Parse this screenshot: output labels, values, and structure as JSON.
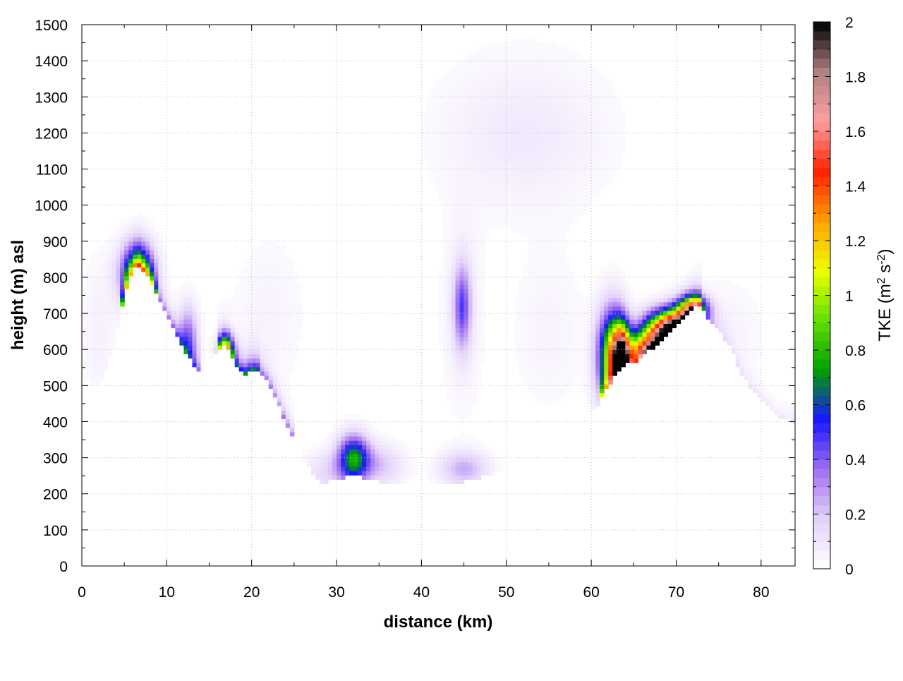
{
  "chart_data": {
    "type": "heatmap",
    "xlabel": "distance (km)",
    "ylabel": "height (m) asl",
    "colorbar_label": {
      "main": "TKE (m",
      "sup1": "2",
      "mid": " s",
      "sup2": "-2",
      "end": ")"
    },
    "xlim": [
      0,
      84
    ],
    "ylim": [
      0,
      1500
    ],
    "clim": [
      0,
      2
    ],
    "x_ticks": [
      0,
      10,
      20,
      30,
      40,
      50,
      60,
      70,
      80
    ],
    "y_ticks": [
      0,
      100,
      200,
      300,
      400,
      500,
      600,
      700,
      800,
      900,
      1000,
      1100,
      1200,
      1300,
      1400,
      1500
    ],
    "c_ticks": [
      0,
      0.2,
      0.4,
      0.6,
      0.8,
      1,
      1.2,
      1.4,
      1.6,
      1.8,
      2
    ],
    "grid": true,
    "colormap": [
      "#ffffff",
      "#e4d2fa",
      "#a070f0",
      "#1818ff",
      "#00a000",
      "#60e000",
      "#f0ff00",
      "#ffa000",
      "#ff2000",
      "#ffa0a0",
      "#b08080",
      "#000000"
    ],
    "terrain": {
      "x": [
        0,
        2,
        4,
        5,
        6.5,
        8,
        9,
        11,
        13,
        14,
        15,
        16,
        17,
        18,
        19,
        20,
        21,
        22,
        24,
        26,
        28,
        30,
        32,
        34,
        36,
        40,
        42,
        44,
        46,
        48,
        50,
        55,
        58,
        60,
        62,
        64,
        65,
        66,
        68,
        70,
        72,
        73,
        74,
        76,
        78,
        80,
        82,
        84
      ],
      "height": [
        520,
        500,
        620,
        760,
        840,
        800,
        740,
        650,
        560,
        530,
        560,
        600,
        620,
        560,
        530,
        545,
        540,
        510,
        400,
        300,
        230,
        240,
        250,
        240,
        228,
        225,
        228,
        230,
        240,
        255,
        270,
        320,
        360,
        420,
        500,
        560,
        560,
        580,
        620,
        670,
        720,
        720,
        680,
        620,
        520,
        460,
        410,
        400
      ]
    },
    "tke_blobs": [
      {
        "x": 6.5,
        "z": 810,
        "sx": 1.4,
        "sz": 60,
        "value": 0.75
      },
      {
        "x": 12.5,
        "z": 620,
        "sx": 0.8,
        "sz": 70,
        "value": 0.4
      },
      {
        "x": 17,
        "z": 600,
        "sx": 0.7,
        "sz": 30,
        "value": 0.6
      },
      {
        "x": 32,
        "z": 300,
        "sx": 1.3,
        "sz": 45,
        "value": 0.7
      },
      {
        "x": 29,
        "z": 260,
        "sx": 2.0,
        "sz": 40,
        "value": 0.15
      },
      {
        "x": 35,
        "z": 280,
        "sx": 2.0,
        "sz": 40,
        "value": 0.2
      },
      {
        "x": 45,
        "z": 270,
        "sx": 2.0,
        "sz": 35,
        "value": 0.25
      },
      {
        "x": 44.8,
        "z": 720,
        "sx": 0.7,
        "sz": 80,
        "value": 0.4
      },
      {
        "x": 44.8,
        "z": 700,
        "sx": 1.6,
        "sz": 180,
        "value": 0.08
      },
      {
        "x": 52,
        "z": 1200,
        "sx": 7,
        "sz": 150,
        "value": 0.09
      },
      {
        "x": 62.5,
        "z": 580,
        "sx": 1.2,
        "sz": 90,
        "value": 1.0
      },
      {
        "x": 63.5,
        "z": 580,
        "sx": 0.7,
        "sz": 60,
        "value": 1.4
      },
      {
        "x": 67,
        "z": 600,
        "sx": 2.0,
        "sz": 35,
        "value": 1.2
      },
      {
        "x": 69.5,
        "z": 660,
        "sx": 2.0,
        "sz": 35,
        "value": 1.6
      },
      {
        "x": 72,
        "z": 715,
        "sx": 1.2,
        "sz": 25,
        "value": 0.9
      },
      {
        "x": 2,
        "z": 650,
        "sx": 1.5,
        "sz": 150,
        "value": 0.06
      },
      {
        "x": 22,
        "z": 700,
        "sx": 3,
        "sz": 150,
        "value": 0.05
      },
      {
        "x": 76,
        "z": 650,
        "sx": 3,
        "sz": 100,
        "value": 0.05
      },
      {
        "x": 55,
        "z": 650,
        "sx": 3,
        "sz": 150,
        "value": 0.05
      }
    ],
    "surface_band": [
      {
        "x0": 4.5,
        "x1": 9,
        "value": 0.8
      },
      {
        "x0": 9,
        "x1": 14,
        "value": 0.4
      },
      {
        "x0": 16,
        "x1": 21,
        "value": 0.7
      },
      {
        "x0": 21,
        "x1": 25,
        "value": 0.35
      },
      {
        "x0": 61,
        "x1": 73,
        "value": 0.9
      },
      {
        "x0": 73,
        "x1": 84,
        "value": 0.1
      }
    ]
  }
}
